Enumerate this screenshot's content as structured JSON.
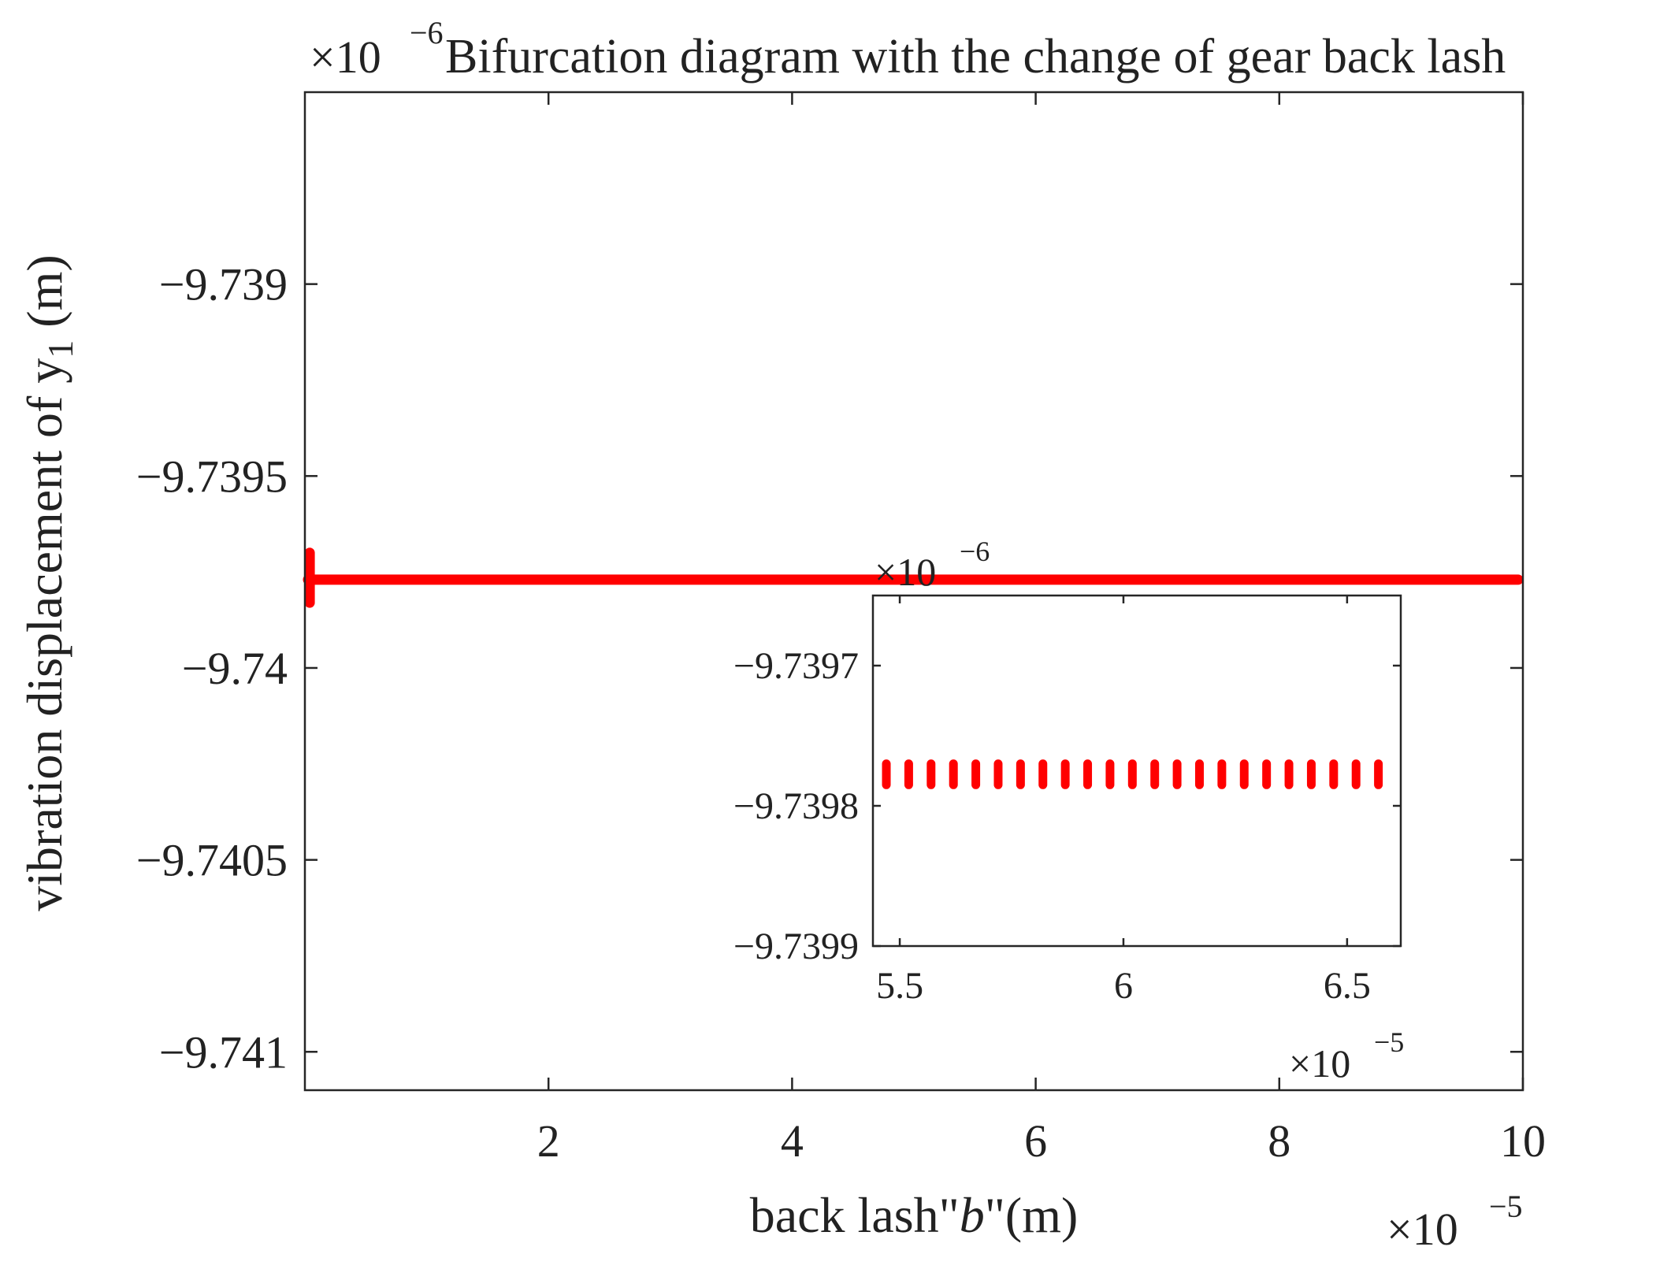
{
  "chart_data": [
    {
      "type": "scatter",
      "name": "main-plot",
      "title": "Bifurcation diagram with the change of gear back lash",
      "xlabel_prefix": "back lash\"",
      "xlabel_var": "b",
      "xlabel_suffix": "\"(m)",
      "ylabel": "vibration displacement of y",
      "ylabel_sub": "1",
      "ylabel_unit": " (m)",
      "x_multiplier_base": "×10",
      "x_multiplier_exp": "−5",
      "y_multiplier_base": "×10",
      "y_multiplier_exp": "−6",
      "xlim": [
        0.0,
        10.0
      ],
      "ylim": [
        -9.7411,
        -9.7385
      ],
      "x_ticks": [
        2,
        4,
        6,
        8,
        10
      ],
      "x_tick_labels": [
        "2",
        "4",
        "6",
        "8",
        "10"
      ],
      "y_ticks": [
        -9.739,
        -9.7395,
        -9.74,
        -9.7405,
        -9.741
      ],
      "y_tick_labels": [
        "−9.739",
        "−9.7395",
        "−9.74",
        "−9.7405",
        "−9.741"
      ],
      "grid": false,
      "series": [
        {
          "color": "#ff0000",
          "description_points": "dense band of points along constant y",
          "x_range": [
            0.0,
            10.0
          ],
          "y": -9.73977,
          "initial_transient": {
            "x": 0.02,
            "y_min": -9.7397,
            "y_max": -9.73983
          }
        }
      ]
    },
    {
      "type": "scatter",
      "name": "inset-zoom",
      "x_multiplier_base": "×10",
      "x_multiplier_exp": "−5",
      "y_multiplier_base": "×10",
      "y_multiplier_exp": "−6",
      "xlim": [
        5.44,
        6.62
      ],
      "ylim": [
        -9.7399,
        -9.73965
      ],
      "x_ticks": [
        5.5,
        6,
        6.5
      ],
      "x_tick_labels": [
        "5.5",
        "6",
        "6.5"
      ],
      "y_ticks": [
        -9.7397,
        -9.7398,
        -9.7399
      ],
      "y_tick_labels": [
        "−9.7397",
        "−9.7398",
        "−9.7399"
      ],
      "grid": false,
      "series": [
        {
          "color": "#ff0000",
          "x": [
            5.47,
            5.52,
            5.57,
            5.62,
            5.67,
            5.72,
            5.77,
            5.82,
            5.87,
            5.92,
            5.97,
            6.02,
            6.07,
            6.12,
            6.17,
            6.22,
            6.27,
            6.32,
            6.37,
            6.42,
            6.47,
            6.52,
            6.57
          ],
          "y_min": -9.739785,
          "y_max": -9.73977
        }
      ]
    }
  ]
}
